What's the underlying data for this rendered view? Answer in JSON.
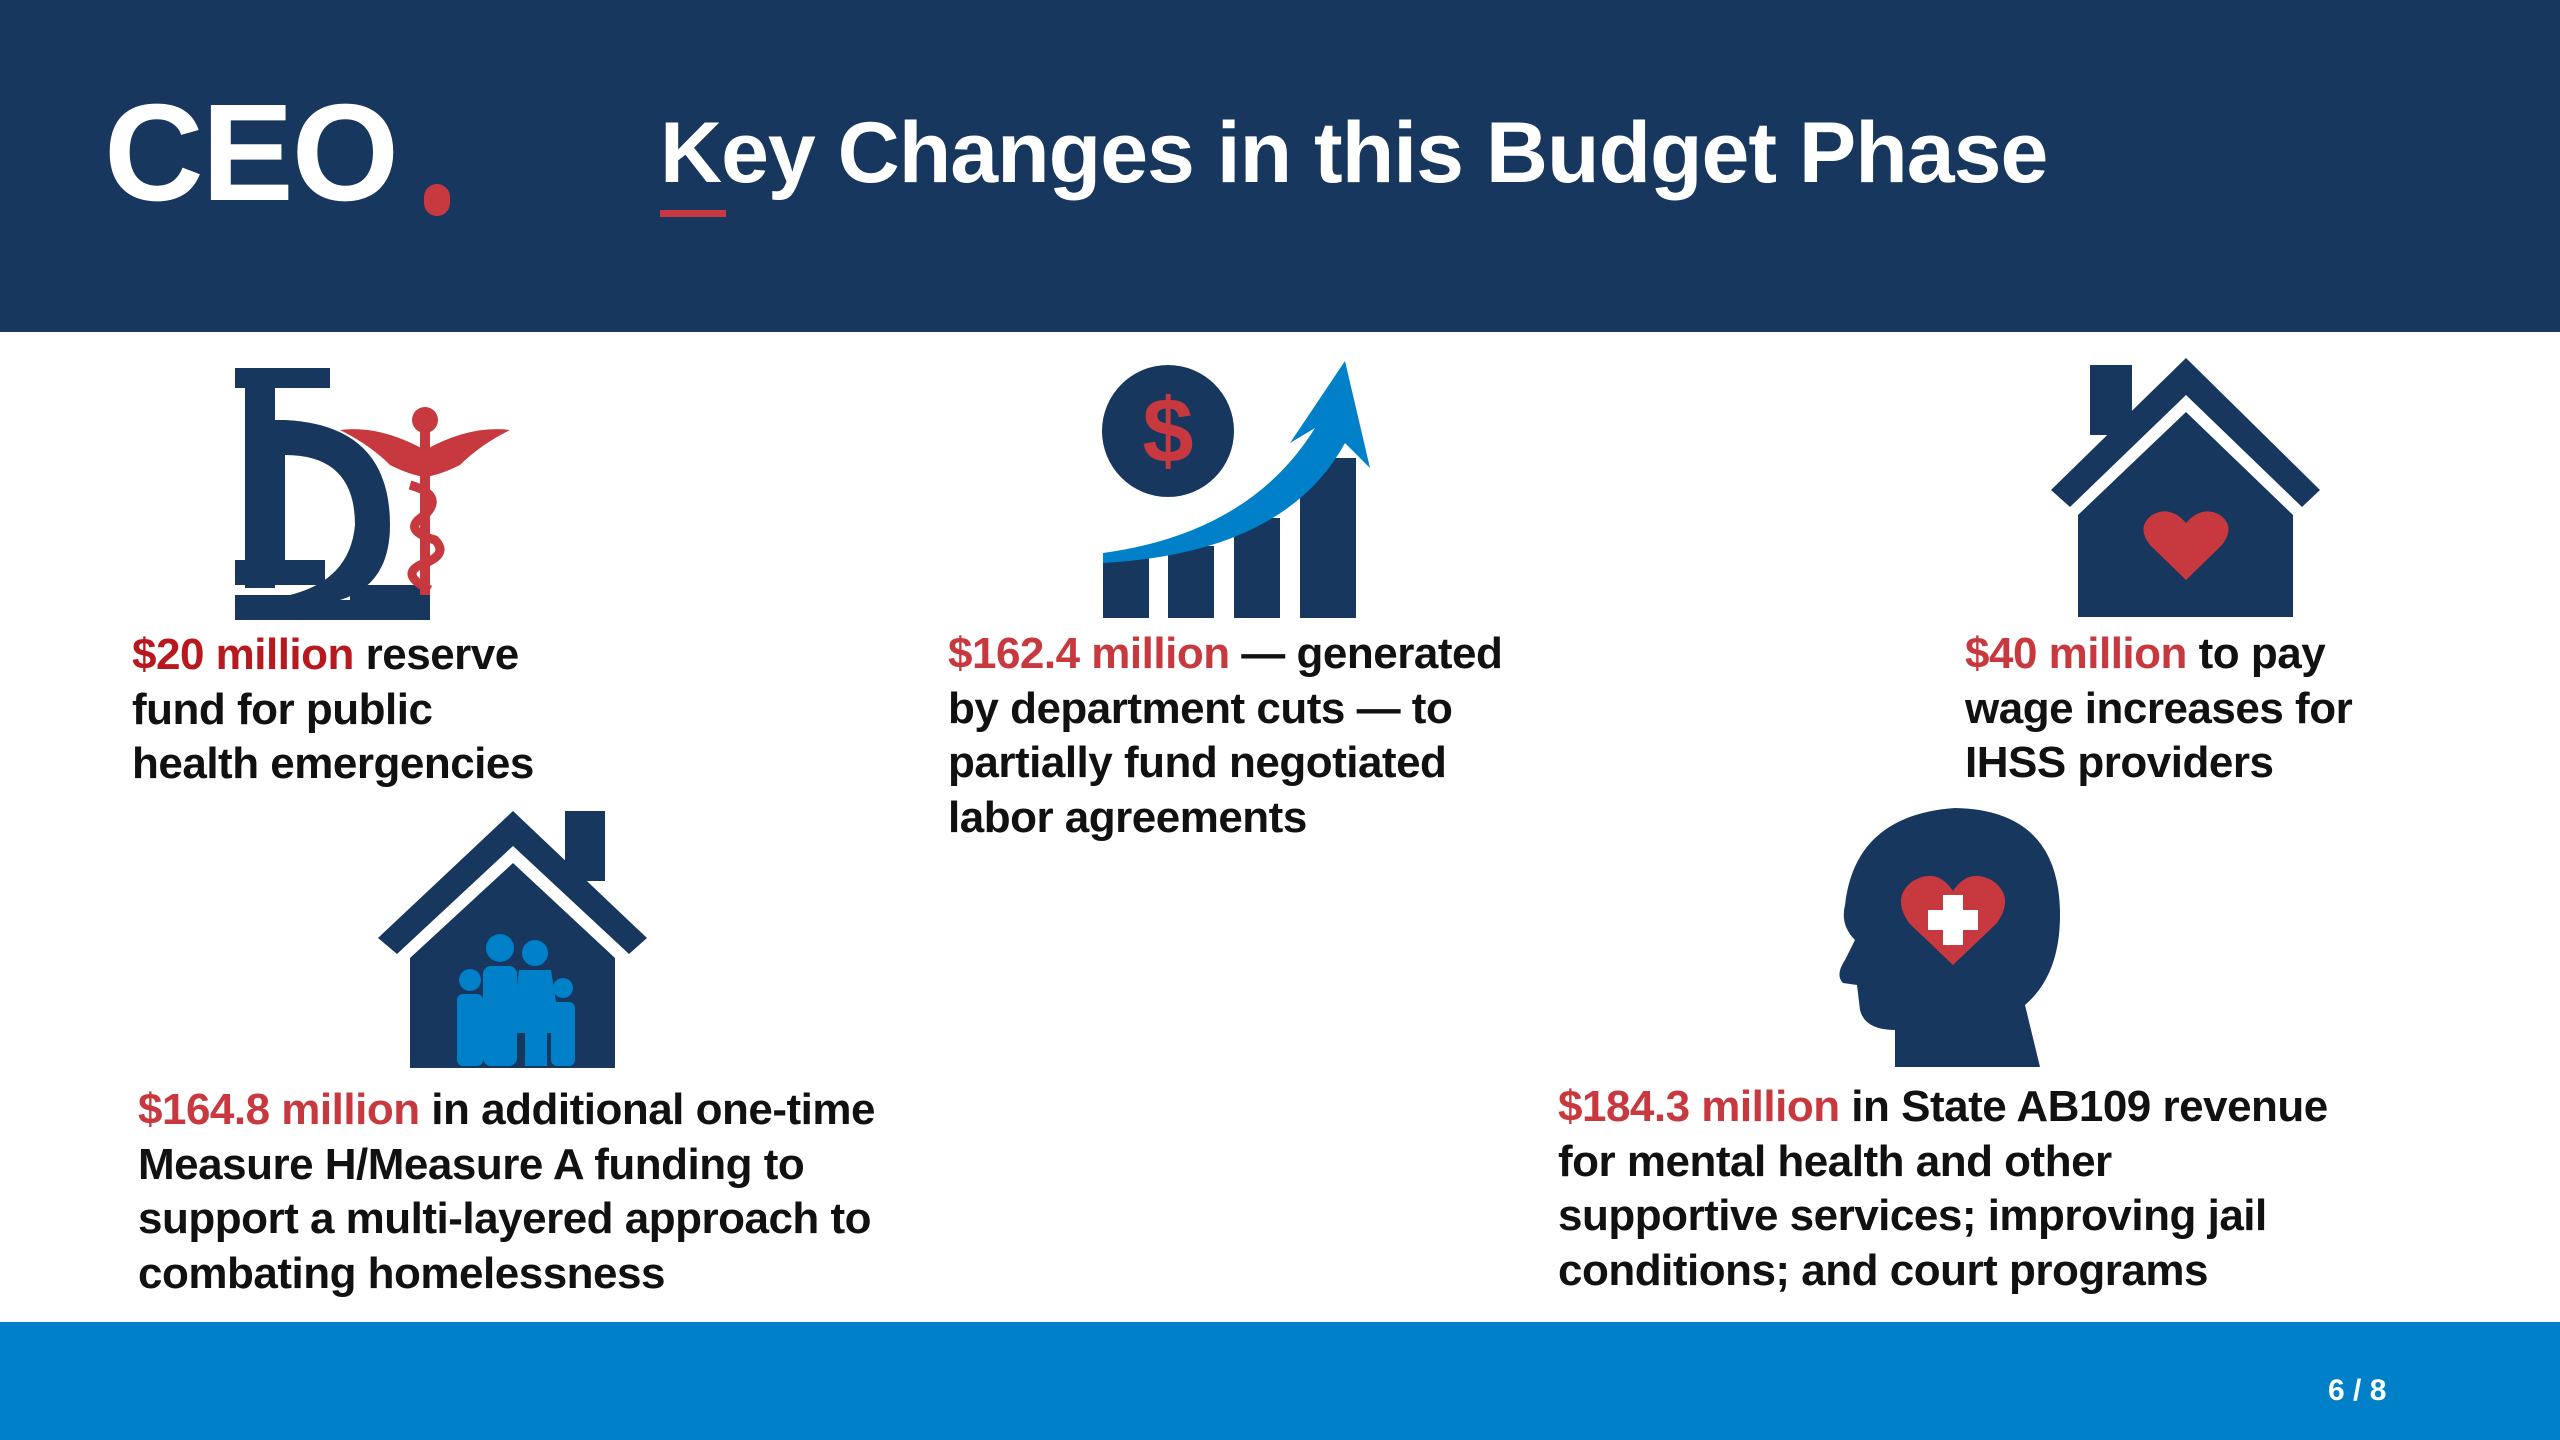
{
  "header": {
    "logo": "CEO.",
    "title": "Key Changes in this Budget Phase"
  },
  "items": [
    {
      "amount": "$20 million",
      "lines": [
        " reserve",
        "fund for public",
        "health emergencies"
      ],
      "icon": "microscope-caduceus-icon"
    },
    {
      "amount": "$162.4 million",
      "lines": [
        " — generated",
        "by department cuts — to",
        "partially fund negotiated",
        "labor agreements"
      ],
      "icon": "money-growth-chart-icon"
    },
    {
      "amount": "$40 million",
      "lines": [
        " to pay",
        "wage increases for",
        "IHSS providers"
      ],
      "icon": "house-heart-icon"
    },
    {
      "amount": "$164.8 million",
      "lines": [
        " in additional one-time",
        "Measure H/Measure A funding to",
        "support a multi-layered approach to",
        "combating homelessness"
      ],
      "icon": "family-house-icon"
    },
    {
      "amount": "$184.3 million",
      "lines": [
        " in State AB109 revenue",
        "for mental health and other",
        "supportive services; improving jail",
        "conditions; and court programs"
      ],
      "icon": "head-heart-icon"
    }
  ],
  "footer": {
    "page": "6 / 8"
  },
  "colors": {
    "navy": "#17375e",
    "red": "#c8393f",
    "blue": "#0080c8"
  }
}
